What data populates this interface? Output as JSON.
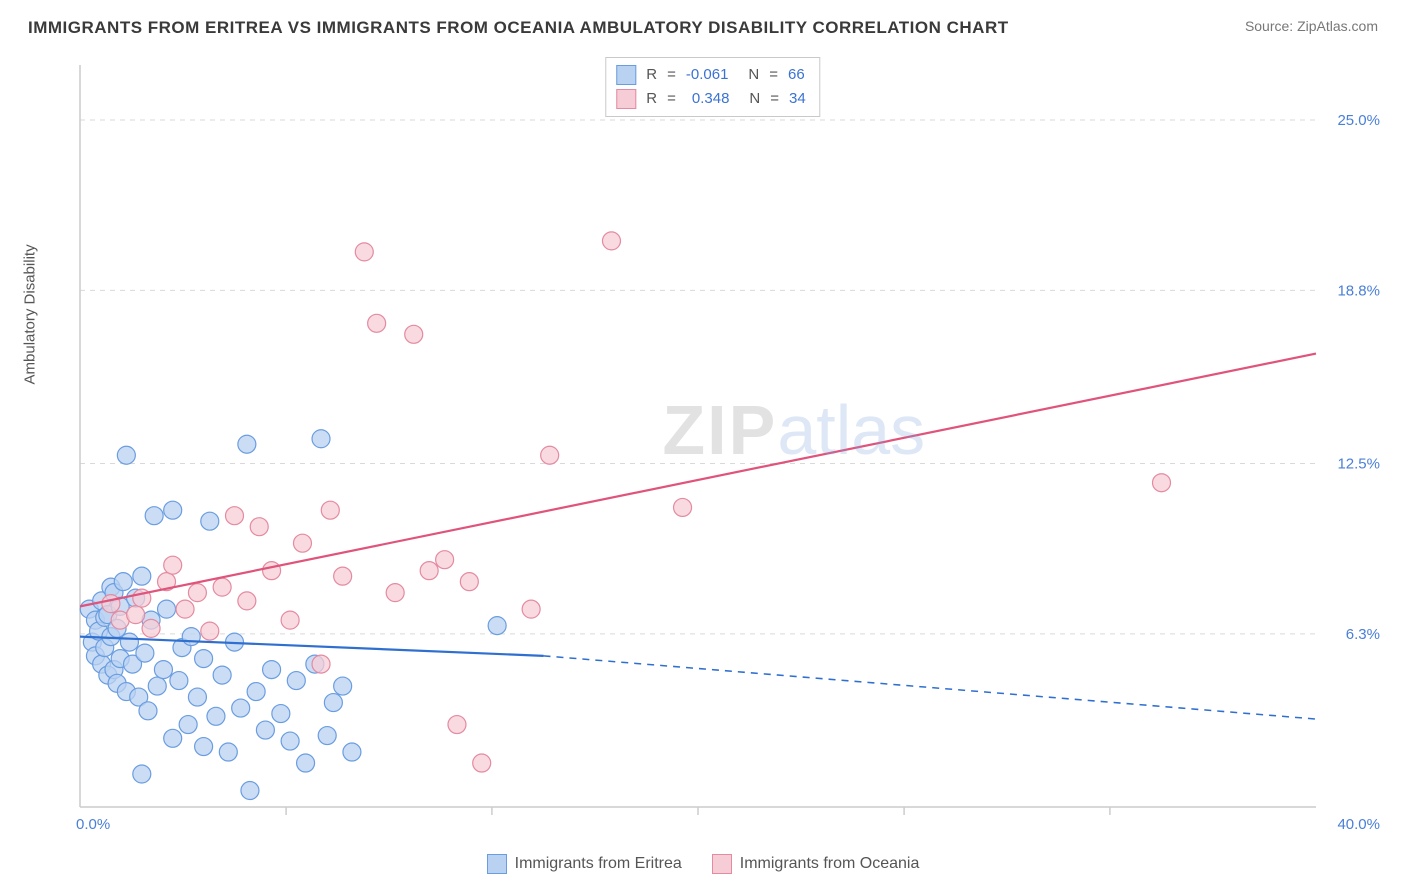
{
  "header": {
    "title": "IMMIGRANTS FROM ERITREA VS IMMIGRANTS FROM OCEANIA AMBULATORY DISABILITY CORRELATION CHART",
    "source": "Source: ZipAtlas.com"
  },
  "ylabel": "Ambulatory Disability",
  "watermark": {
    "left": "ZIP",
    "right": "atlas"
  },
  "chart": {
    "type": "scatter",
    "xlim": [
      0,
      40
    ],
    "ylim": [
      0,
      27
    ],
    "background_color": "#ffffff",
    "grid_color": "#d9d9d9",
    "grid_dash": "5,5",
    "axis_color": "#cccccc",
    "tick_color": "#cccccc",
    "label_color": "#4a7fd6",
    "label_fontsize": 15,
    "yticks": [
      {
        "v": 6.3,
        "label": "6.3%"
      },
      {
        "v": 12.5,
        "label": "12.5%"
      },
      {
        "v": 18.8,
        "label": "18.8%"
      },
      {
        "v": 25.0,
        "label": "25.0%"
      }
    ],
    "x_start_label": "0.0%",
    "x_end_label": "40.0%",
    "xticks_minor": [
      6.67,
      13.33,
      20.0,
      26.67,
      33.33
    ],
    "marker_radius": 9,
    "marker_stroke_width": 1.2,
    "series": [
      {
        "name": "Immigrants from Eritrea",
        "fill": "#b9d2f1",
        "stroke": "#6a9de0",
        "fill_opacity": 0.75,
        "R": "-0.061",
        "N": "66",
        "trend": {
          "solid": {
            "x1": 0,
            "y1": 6.2,
            "x2": 15,
            "y2": 5.5
          },
          "dashed": {
            "x1": 15,
            "y1": 5.5,
            "x2": 40,
            "y2": 3.2
          },
          "color": "#2f6fd0",
          "width": 2.2,
          "dash": "7,6"
        },
        "points": [
          [
            0.3,
            7.2
          ],
          [
            0.4,
            6.0
          ],
          [
            0.5,
            6.8
          ],
          [
            0.5,
            5.5
          ],
          [
            0.6,
            6.4
          ],
          [
            0.7,
            7.5
          ],
          [
            0.7,
            5.2
          ],
          [
            0.8,
            6.9
          ],
          [
            0.8,
            5.8
          ],
          [
            0.9,
            7.0
          ],
          [
            0.9,
            4.8
          ],
          [
            1.0,
            6.2
          ],
          [
            1.0,
            8.0
          ],
          [
            1.1,
            7.8
          ],
          [
            1.1,
            5.0
          ],
          [
            1.2,
            6.5
          ],
          [
            1.2,
            4.5
          ],
          [
            1.3,
            7.3
          ],
          [
            1.3,
            5.4
          ],
          [
            1.4,
            8.2
          ],
          [
            1.5,
            4.2
          ],
          [
            1.6,
            6.0
          ],
          [
            1.7,
            5.2
          ],
          [
            1.8,
            7.6
          ],
          [
            1.9,
            4.0
          ],
          [
            2.0,
            8.4
          ],
          [
            2.1,
            5.6
          ],
          [
            2.2,
            3.5
          ],
          [
            2.3,
            6.8
          ],
          [
            2.4,
            10.6
          ],
          [
            2.5,
            4.4
          ],
          [
            2.7,
            5.0
          ],
          [
            2.8,
            7.2
          ],
          [
            3.0,
            10.8
          ],
          [
            3.0,
            2.5
          ],
          [
            3.2,
            4.6
          ],
          [
            3.3,
            5.8
          ],
          [
            3.5,
            3.0
          ],
          [
            3.6,
            6.2
          ],
          [
            3.8,
            4.0
          ],
          [
            4.0,
            2.2
          ],
          [
            4.0,
            5.4
          ],
          [
            4.2,
            10.4
          ],
          [
            4.4,
            3.3
          ],
          [
            4.6,
            4.8
          ],
          [
            4.8,
            2.0
          ],
          [
            5.0,
            6.0
          ],
          [
            5.2,
            3.6
          ],
          [
            5.4,
            13.2
          ],
          [
            5.5,
            0.6
          ],
          [
            5.7,
            4.2
          ],
          [
            6.0,
            2.8
          ],
          [
            6.2,
            5.0
          ],
          [
            6.5,
            3.4
          ],
          [
            6.8,
            2.4
          ],
          [
            7.0,
            4.6
          ],
          [
            7.3,
            1.6
          ],
          [
            7.6,
            5.2
          ],
          [
            7.8,
            13.4
          ],
          [
            8.0,
            2.6
          ],
          [
            8.2,
            3.8
          ],
          [
            8.5,
            4.4
          ],
          [
            8.8,
            2.0
          ],
          [
            13.5,
            6.6
          ],
          [
            1.5,
            12.8
          ],
          [
            2.0,
            1.2
          ]
        ]
      },
      {
        "name": "Immigrants from Oceania",
        "fill": "#f6cdd6",
        "stroke": "#e48aa1",
        "fill_opacity": 0.75,
        "R": "0.348",
        "N": "34",
        "trend": {
          "solid": {
            "x1": 0,
            "y1": 7.3,
            "x2": 40,
            "y2": 16.5
          },
          "dashed": null,
          "color": "#e0537b",
          "width": 2.2
        },
        "points": [
          [
            1.0,
            7.4
          ],
          [
            1.3,
            6.8
          ],
          [
            1.8,
            7.0
          ],
          [
            2.0,
            7.6
          ],
          [
            2.3,
            6.5
          ],
          [
            2.8,
            8.2
          ],
          [
            3.0,
            8.8
          ],
          [
            3.4,
            7.2
          ],
          [
            3.8,
            7.8
          ],
          [
            4.2,
            6.4
          ],
          [
            4.6,
            8.0
          ],
          [
            5.0,
            10.6
          ],
          [
            5.4,
            7.5
          ],
          [
            5.8,
            10.2
          ],
          [
            6.2,
            8.6
          ],
          [
            6.8,
            6.8
          ],
          [
            7.2,
            9.6
          ],
          [
            7.8,
            5.2
          ],
          [
            8.1,
            10.8
          ],
          [
            8.5,
            8.4
          ],
          [
            9.2,
            20.2
          ],
          [
            9.6,
            17.6
          ],
          [
            10.2,
            7.8
          ],
          [
            10.8,
            17.2
          ],
          [
            11.3,
            8.6
          ],
          [
            11.8,
            9.0
          ],
          [
            12.2,
            3.0
          ],
          [
            12.6,
            8.2
          ],
          [
            13.0,
            1.6
          ],
          [
            14.6,
            7.2
          ],
          [
            15.2,
            12.8
          ],
          [
            17.2,
            20.6
          ],
          [
            19.5,
            10.9
          ],
          [
            35.0,
            11.8
          ]
        ]
      }
    ]
  },
  "stat_legend": {
    "r_label": "R",
    "n_label": "N",
    "eq": "="
  },
  "bottom_legend": {
    "items": [
      {
        "label": "Immigrants from Eritrea",
        "fill": "#b9d2f1",
        "stroke": "#6a9de0"
      },
      {
        "label": "Immigrants from Oceania",
        "fill": "#f6cdd6",
        "stroke": "#e48aa1"
      }
    ]
  }
}
